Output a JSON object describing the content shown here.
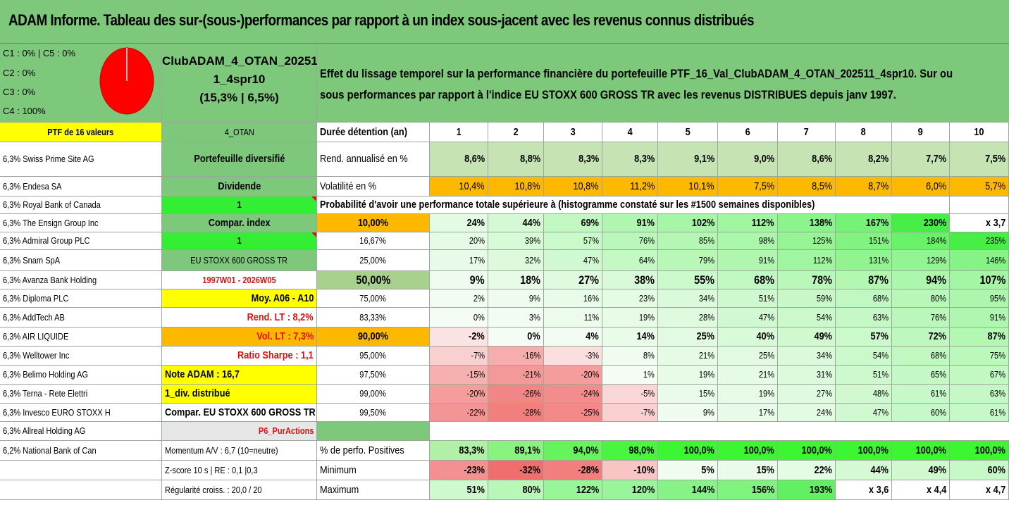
{
  "title": "ADAM Informe. Tableau des sur-(sous-)performances par rapport à un index sous-jacent avec les revenus connus distribués",
  "legend": {
    "c1c5": "C1 : 0% | C5 : 0%",
    "c2": "C2 : 0%",
    "c3": "C3 : 0%",
    "c4": "C4 : 100%"
  },
  "pie": {
    "color": "#ff0000",
    "stroke": "#ffffff"
  },
  "portfolio": {
    "line1": "ClubADAM_4_OTAN_20251",
    "line2": "1_4spr10",
    "line3": "(15,3% | 6,5%)"
  },
  "description": {
    "line1": "Effet du lissage temporel sur la performance financière du portefeuille PTF_16_Val_ClubADAM_4_OTAN_202511_4spr10. Sur ou",
    "line2": "sous performances par rapport à l'indice EU STOXX 600 GROSS TR avec les revenus DISTRIBUES depuis janv 1997."
  },
  "ptf_header": "PTF de 16 valeurs",
  "holdings": [
    "6,3% Swiss Prime Site AG",
    "6,3% Endesa SA",
    "6,3% Royal Bank of Canada",
    "6,3% The Ensign Group Inc",
    "6,3% Admiral Group PLC",
    "6,3% Snam SpA",
    "6,3% Avanza Bank Holding",
    "6,3% Diploma PLC",
    "6,3% AddTech AB",
    "6,3% AIR LIQUIDE",
    "6,3% Welltower Inc",
    "6,3% Belimo Holding AG",
    "6,3% Terna - Rete Elettri",
    "6,3% Invesco EURO STOXX H",
    "6,3% Allreal Holding AG",
    "6,2% National Bank of Can"
  ],
  "info": [
    "4_OTAN",
    "Portefeuille diversifié",
    "Dividende",
    "1",
    "Compar. index",
    "1",
    "EU STOXX 600 GROSS TR",
    "1997W01 - 2026W05",
    "Moy. A06 - A10",
    "Rend. LT : 8,2%",
    "Vol. LT : 7,3%",
    "Ratio Sharpe : 1,1",
    "Note ADAM : 16,7",
    "1_div. distribué",
    "Compar. EU STOXX 600 GROSS TR",
    "P6_PurActions",
    "Momentum A/V : 6,7 (10=neutre)",
    "Z-score 10 s | RE : 0,1 |0,3",
    "Régularité croiss. : 20,0 / 20"
  ],
  "header": {
    "label": "Durée détention (an)",
    "years": [
      "1",
      "2",
      "3",
      "4",
      "5",
      "6",
      "7",
      "8",
      "9",
      "10"
    ]
  },
  "rend": {
    "label": "Rend. annualisé en %",
    "values": [
      "8,6%",
      "8,8%",
      "8,3%",
      "8,3%",
      "9,1%",
      "9,0%",
      "8,6%",
      "8,2%",
      "7,7%",
      "7,5%"
    ]
  },
  "vol": {
    "label": "Volatilité en %",
    "values": [
      "10,4%",
      "10,8%",
      "10,8%",
      "11,2%",
      "10,1%",
      "7,5%",
      "8,5%",
      "8,7%",
      "6,0%",
      "5,7%"
    ]
  },
  "proba_title": "Probabilité d'avoir une performance totale supérieure à (histogramme constaté sur les #1500 semaines disponibles)",
  "quantiles": [
    {
      "p": "10,00%",
      "values": [
        "24%",
        "44%",
        "69%",
        "91%",
        "102%",
        "112%",
        "138%",
        "167%",
        "230%",
        "x 3,7"
      ]
    },
    {
      "p": "16,67%",
      "values": [
        "20%",
        "39%",
        "57%",
        "76%",
        "85%",
        "98%",
        "125%",
        "151%",
        "184%",
        "235%"
      ]
    },
    {
      "p": "25,00%",
      "values": [
        "17%",
        "32%",
        "47%",
        "64%",
        "79%",
        "91%",
        "112%",
        "131%",
        "129%",
        "146%"
      ]
    },
    {
      "p": "50,00%",
      "values": [
        "9%",
        "18%",
        "27%",
        "38%",
        "55%",
        "68%",
        "78%",
        "87%",
        "94%",
        "107%"
      ]
    },
    {
      "p": "75,00%",
      "values": [
        "2%",
        "9%",
        "16%",
        "23%",
        "34%",
        "51%",
        "59%",
        "68%",
        "80%",
        "95%"
      ]
    },
    {
      "p": "83,33%",
      "values": [
        "0%",
        "3%",
        "11%",
        "19%",
        "28%",
        "47%",
        "54%",
        "63%",
        "76%",
        "91%"
      ]
    },
    {
      "p": "90,00%",
      "values": [
        "-2%",
        "0%",
        "4%",
        "14%",
        "25%",
        "40%",
        "49%",
        "57%",
        "72%",
        "87%"
      ]
    },
    {
      "p": "95,00%",
      "values": [
        "-7%",
        "-16%",
        "-3%",
        "8%",
        "21%",
        "25%",
        "34%",
        "54%",
        "68%",
        "75%"
      ]
    },
    {
      "p": "97,50%",
      "values": [
        "-15%",
        "-21%",
        "-20%",
        "1%",
        "19%",
        "21%",
        "31%",
        "51%",
        "65%",
        "67%"
      ]
    },
    {
      "p": "99,00%",
      "values": [
        "-20%",
        "-26%",
        "-24%",
        "-5%",
        "15%",
        "19%",
        "27%",
        "48%",
        "61%",
        "63%"
      ]
    },
    {
      "p": "99,50%",
      "values": [
        "-22%",
        "-28%",
        "-25%",
        "-7%",
        "9%",
        "17%",
        "24%",
        "47%",
        "60%",
        "61%"
      ]
    }
  ],
  "positives": {
    "label": "% de perfo. Positives",
    "values": [
      "83,3%",
      "89,1%",
      "94,0%",
      "98,0%",
      "100,0%",
      "100,0%",
      "100,0%",
      "100,0%",
      "100,0%",
      "100,0%"
    ]
  },
  "minimum": {
    "label": "Minimum",
    "values": [
      "-23%",
      "-32%",
      "-28%",
      "-10%",
      "5%",
      "15%",
      "22%",
      "44%",
      "49%",
      "60%"
    ]
  },
  "maximum": {
    "label": "Maximum",
    "values": [
      "51%",
      "80%",
      "122%",
      "120%",
      "144%",
      "156%",
      "193%",
      "x 3,6",
      "x 4,4",
      "x 4,7"
    ]
  },
  "colors": {
    "header_green": "#7dc87b",
    "bright_green": "#33ee33",
    "yellow": "#ffff00",
    "orange": "#ffb800",
    "light_green_cell": "#c6e3b4",
    "red_text": "#e01010"
  }
}
